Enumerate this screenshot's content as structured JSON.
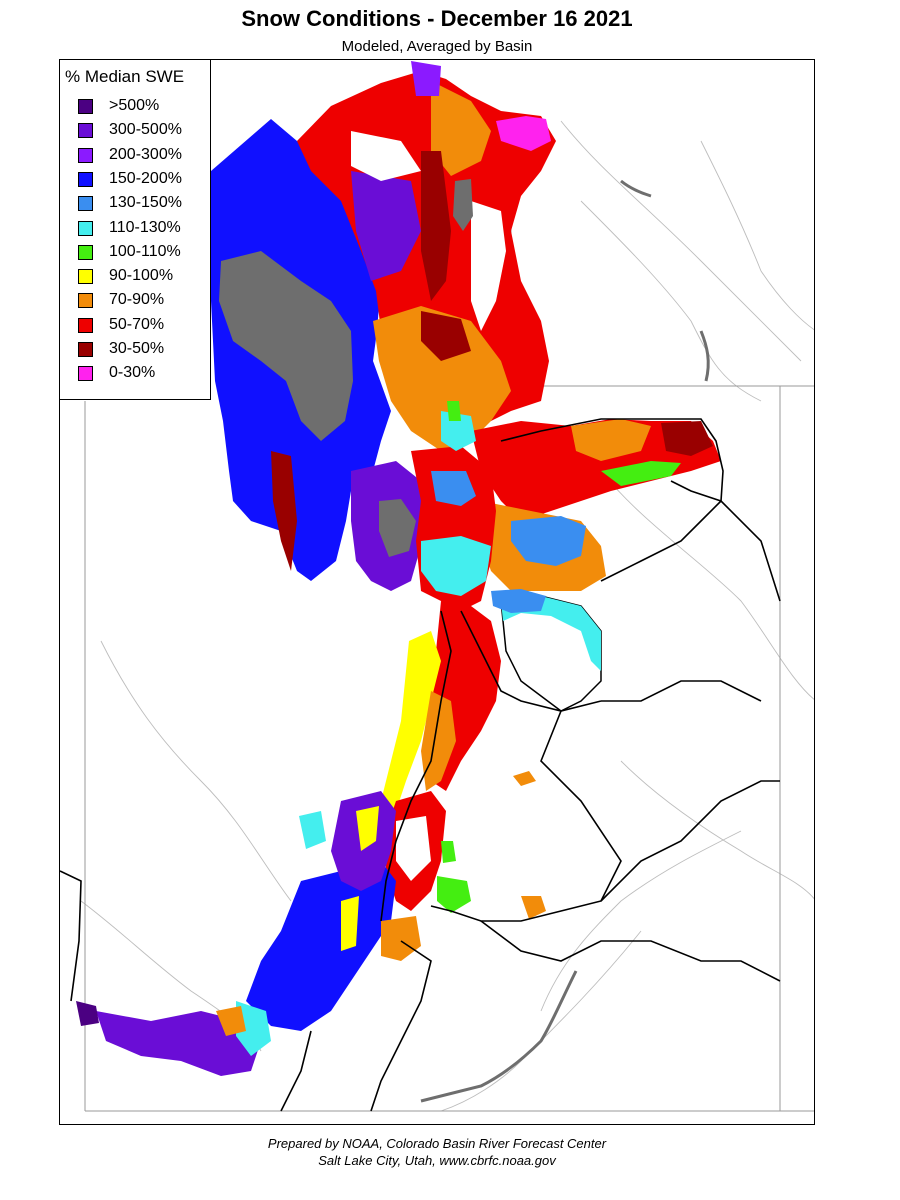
{
  "title": "Snow Conditions - December 16 2021",
  "subtitle": "Modeled, Averaged by Basin",
  "legend": {
    "title": "% Median SWE",
    "items": [
      {
        "label": ">500%",
        "color": "#4b0082"
      },
      {
        "label": "300-500%",
        "color": "#6a0dd6"
      },
      {
        "label": "200-300%",
        "color": "#8b1aff"
      },
      {
        "label": "150-200%",
        "color": "#1010ff"
      },
      {
        "label": "130-150%",
        "color": "#3a8ef0"
      },
      {
        "label": "110-130%",
        "color": "#44eeee"
      },
      {
        "label": "100-110%",
        "color": "#44ee11"
      },
      {
        "label": "90-100%",
        "color": "#ffff00"
      },
      {
        "label": "70-90%",
        "color": "#f28c0a"
      },
      {
        "label": "50-70%",
        "color": "#ee0000"
      },
      {
        "label": "30-50%",
        "color": "#990000"
      },
      {
        "label": "0-30%",
        "color": "#ff22ee"
      }
    ]
  },
  "no_data_color": "#6e6e6e",
  "credit": {
    "line1": "Prepared by NOAA, Colorado Basin River Forecast Center",
    "line2": "Salt Lake City, Utah, www.cbrfc.noaa.gov"
  }
}
